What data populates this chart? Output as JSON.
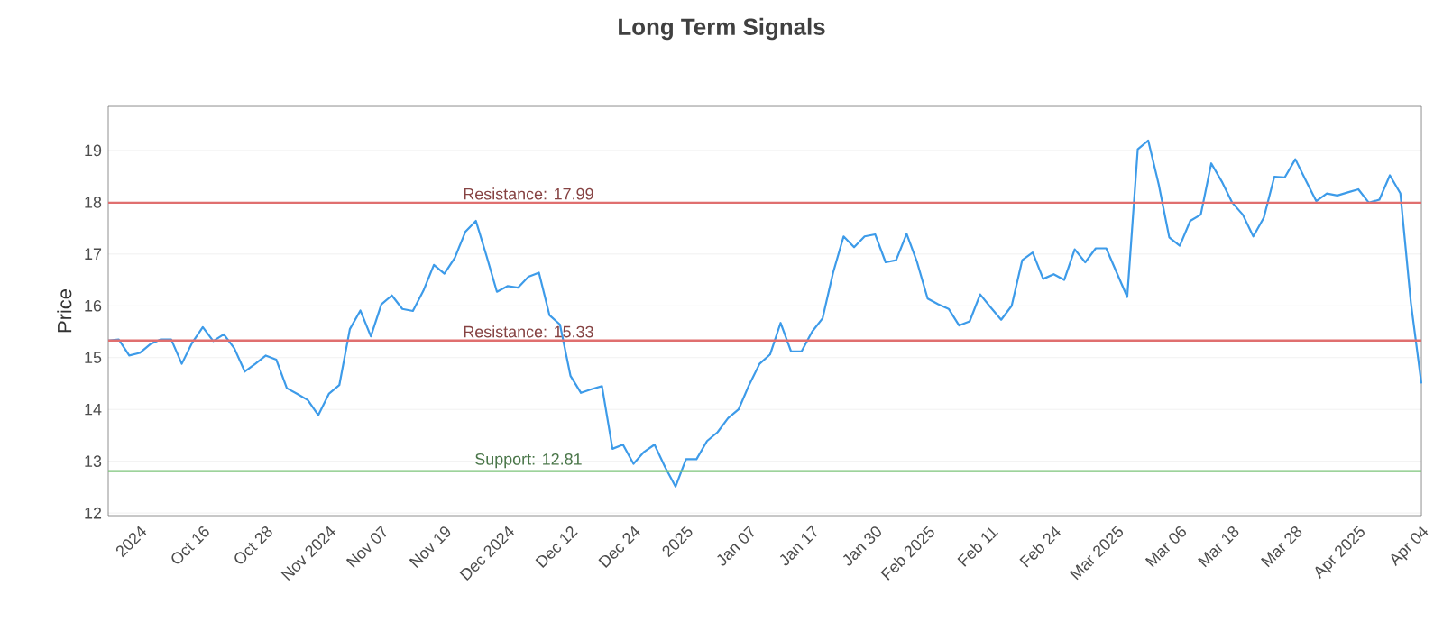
{
  "chart_data": {
    "type": "line",
    "title": "Long Term Signals",
    "ylabel": "Price",
    "categories": [
      null,
      null,
      null,
      "2024",
      null,
      null,
      null,
      null,
      null,
      "Oct 16",
      null,
      null,
      null,
      null,
      null,
      "Oct 28",
      null,
      null,
      null,
      null,
      null,
      "Nov 2024",
      null,
      null,
      null,
      null,
      "Nov 07",
      null,
      null,
      null,
      null,
      null,
      "Nov 19",
      null,
      null,
      null,
      null,
      null,
      "Dec 2024",
      null,
      null,
      null,
      null,
      null,
      "Dec 12",
      null,
      null,
      null,
      null,
      null,
      "Dec 24",
      null,
      null,
      null,
      null,
      "2025",
      null,
      null,
      null,
      null,
      null,
      "Jan 07",
      null,
      null,
      null,
      null,
      null,
      "Jan 17",
      null,
      null,
      null,
      null,
      null,
      "Jan 30",
      null,
      null,
      null,
      null,
      "Feb 2025",
      null,
      null,
      null,
      null,
      null,
      "Feb 11",
      null,
      null,
      null,
      null,
      null,
      "Feb 24",
      null,
      null,
      null,
      null,
      null,
      "Mar 2025",
      null,
      null,
      null,
      null,
      null,
      "Mar 06",
      null,
      null,
      null,
      null,
      "Mar 18",
      null,
      null,
      null,
      null,
      null,
      "Mar 28",
      null,
      null,
      null,
      null,
      null,
      "Apr 2025",
      null,
      null,
      null,
      null,
      null,
      "Apr 04"
    ],
    "series": [
      {
        "color": "#3d9be9",
        "values": [
          15.33,
          15.35,
          15.04,
          15.09,
          15.26,
          15.35,
          15.35,
          14.88,
          15.29,
          15.59,
          15.32,
          15.45,
          15.18,
          14.73,
          14.88,
          15.04,
          14.96,
          14.41,
          14.3,
          14.18,
          13.89,
          14.3,
          14.47,
          15.55,
          15.91,
          15.41,
          16.03,
          16.2,
          15.94,
          15.9,
          16.29,
          16.79,
          16.62,
          16.93,
          17.43,
          17.64,
          16.97,
          16.27,
          16.38,
          16.35,
          16.56,
          16.64,
          15.82,
          15.64,
          14.65,
          14.32,
          14.39,
          14.45,
          13.24,
          13.32,
          12.95,
          13.18,
          13.32,
          12.89,
          12.51,
          13.04,
          13.04,
          13.39,
          13.56,
          13.83,
          14.0,
          14.47,
          14.88,
          15.06,
          15.67,
          15.12,
          15.12,
          15.5,
          15.76,
          16.64,
          17.34,
          17.13,
          17.34,
          17.38,
          16.84,
          16.88,
          17.39,
          16.84,
          16.14,
          16.03,
          15.94,
          15.62,
          15.7,
          16.22,
          15.97,
          15.73,
          16.0,
          16.88,
          17.03,
          16.52,
          16.61,
          16.5,
          17.09,
          16.84,
          17.11,
          17.11,
          16.64,
          16.17,
          19.02,
          19.19,
          18.34,
          17.32,
          17.16,
          17.64,
          17.76,
          18.75,
          18.4,
          17.99,
          17.76,
          17.34,
          17.7,
          18.49,
          18.48,
          18.83,
          18.42,
          18.02,
          18.17,
          18.13,
          18.19,
          18.25,
          17.99,
          18.05,
          18.52,
          18.17,
          16.06,
          14.5
        ]
      }
    ],
    "ylim": [
      11.95,
      19.85
    ],
    "yticks": [
      12,
      13,
      14,
      15,
      16,
      17,
      18,
      19
    ],
    "grid": "y",
    "ref_lines": [
      {
        "axis": "y",
        "value": 17.99,
        "label": "Resistance: 17.99",
        "color": "#e06f6f"
      },
      {
        "axis": "y",
        "value": 15.33,
        "label": "Resistance: 15.33",
        "color": "#e06f6f"
      },
      {
        "axis": "y",
        "value": 12.81,
        "label": "Support: 12.81",
        "color": "#7cc47a"
      }
    ]
  }
}
